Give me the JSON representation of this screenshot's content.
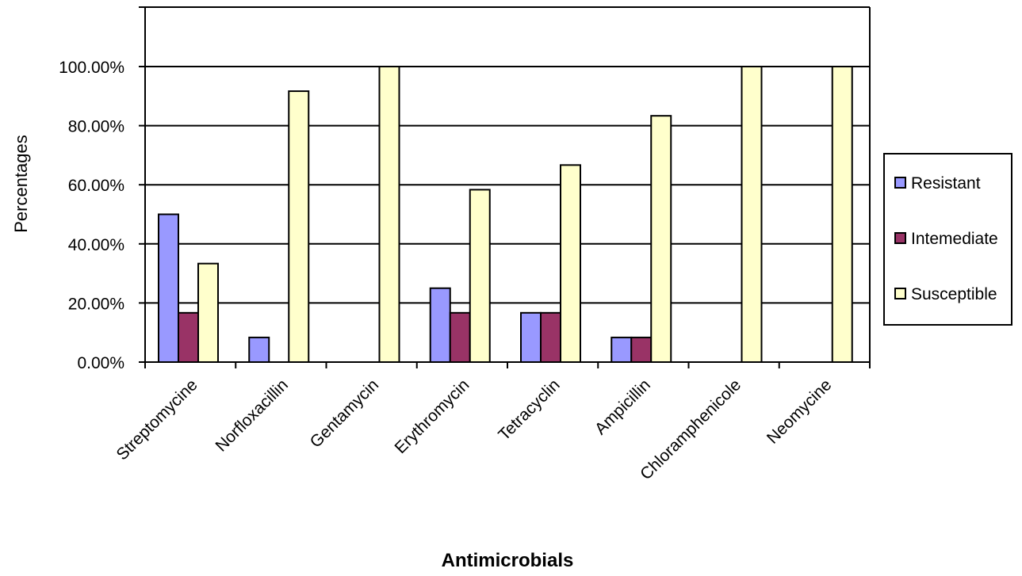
{
  "chart_data": {
    "type": "bar",
    "title": "",
    "xlabel": "Antimicrobials",
    "ylabel": "Percentages",
    "categories": [
      "Streptomycine",
      "Norfloxacillin",
      "Gentamycin",
      "Erythromycin",
      "Tetracyclin",
      "Ampicillin",
      "Chloramphenicole",
      "Neomycine"
    ],
    "series": [
      {
        "name": "Resistant",
        "values": [
          50.0,
          8.33,
          0,
          25.0,
          16.67,
          8.33,
          0,
          0
        ],
        "color": "#9999FF"
      },
      {
        "name": "Intemediate",
        "values": [
          16.67,
          0,
          0,
          16.67,
          16.67,
          8.33,
          0,
          0
        ],
        "color": "#993366"
      },
      {
        "name": "Susceptible",
        "values": [
          33.33,
          91.67,
          100.0,
          58.33,
          66.67,
          83.33,
          100.0,
          100.0
        ],
        "color": "#FFFFCC"
      }
    ],
    "ylim": [
      0,
      100
    ],
    "yticks": [
      "0.00%",
      "20.00%",
      "40.00%",
      "60.00%",
      "80.00%",
      "100.00%"
    ],
    "grid": true,
    "legend_position": "right"
  }
}
